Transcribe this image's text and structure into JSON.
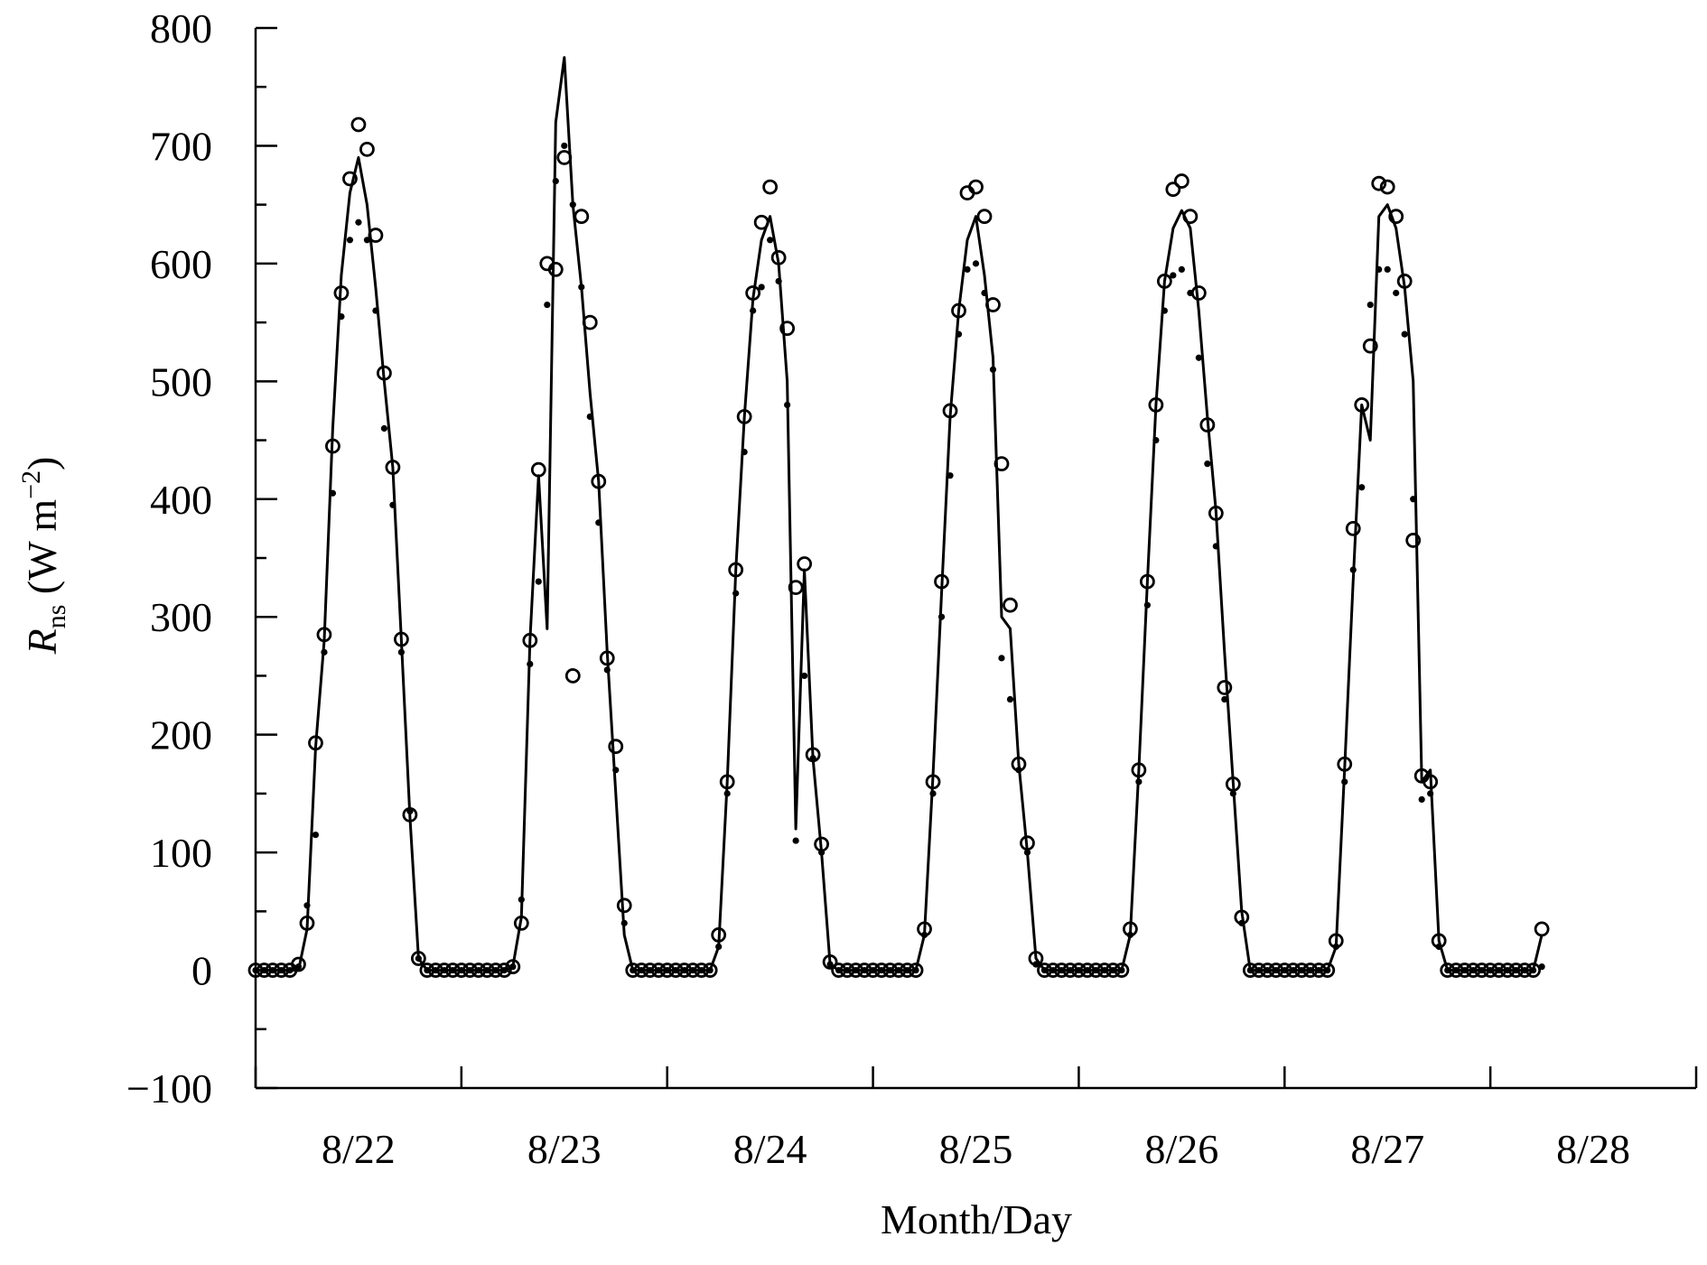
{
  "chart_data": {
    "type": "line",
    "xlabel": "Month/Day",
    "ylabel_parts": [
      "R",
      "ns",
      " (W m",
      "−2",
      ")"
    ],
    "x": [
      0,
      1,
      2,
      3,
      4,
      5,
      6,
      7,
      8,
      9,
      10,
      11,
      12,
      13,
      14,
      15,
      16,
      17,
      18,
      19,
      20,
      21,
      22,
      23,
      24,
      25,
      26,
      27,
      28,
      29,
      30,
      31,
      32,
      33,
      34,
      35,
      36,
      37,
      38,
      39,
      40,
      41,
      42,
      43,
      44,
      45,
      46,
      47,
      48,
      49,
      50,
      51,
      52,
      53,
      54,
      55,
      56,
      57,
      58,
      59,
      60,
      61,
      62,
      63,
      64,
      65,
      66,
      67,
      68,
      69,
      70,
      71,
      72,
      73,
      74,
      75,
      76,
      77,
      78,
      79,
      80,
      81,
      82,
      83,
      84,
      85,
      86,
      87,
      88,
      89,
      90,
      91,
      92,
      93,
      94,
      95,
      96,
      97,
      98,
      99,
      100,
      101,
      102,
      103,
      104,
      105,
      106,
      107,
      108,
      109,
      110,
      111,
      112,
      113,
      114,
      115,
      116,
      117,
      118,
      119,
      120,
      121,
      122,
      123,
      124,
      125,
      126,
      127,
      128,
      129,
      130,
      131,
      132,
      133,
      134,
      135,
      136,
      137,
      138,
      139,
      140,
      141,
      142,
      143,
      144,
      145,
      146,
      147,
      148,
      149,
      150
    ],
    "xlim": [
      0,
      168
    ],
    "xtick_marks": [
      0,
      24,
      48,
      72,
      96,
      120,
      144,
      168
    ],
    "xticks": [
      {
        "value": 12,
        "label": "8/22"
      },
      {
        "value": 36,
        "label": "8/23"
      },
      {
        "value": 60,
        "label": "8/24"
      },
      {
        "value": 84,
        "label": "8/25"
      },
      {
        "value": 108,
        "label": "8/26"
      },
      {
        "value": 132,
        "label": "8/27"
      },
      {
        "value": 156,
        "label": "8/28"
      }
    ],
    "ylim": [
      -100,
      800
    ],
    "yticks": [
      {
        "value": -100,
        "label": "−100"
      },
      0,
      100,
      200,
      300,
      400,
      500,
      600,
      700,
      800
    ],
    "yminor": [
      -50,
      50,
      150,
      250,
      350,
      450,
      550,
      650,
      750
    ],
    "series": [
      {
        "mark": "line",
        "color": "#000000",
        "values": [
          0,
          0,
          0,
          0,
          0,
          0,
          35,
          190,
          280,
          460,
          590,
          660,
          690,
          650,
          580,
          500,
          427,
          280,
          130,
          10,
          0,
          0,
          0,
          0,
          0,
          0,
          0,
          0,
          0,
          0,
          3,
          45,
          280,
          420,
          290,
          720,
          775,
          650,
          580,
          490,
          415,
          270,
          150,
          30,
          0,
          0,
          0,
          0,
          0,
          0,
          0,
          0,
          0,
          0,
          20,
          160,
          340,
          470,
          570,
          620,
          640,
          600,
          500,
          120,
          340,
          180,
          100,
          5,
          0,
          0,
          0,
          0,
          0,
          0,
          0,
          0,
          0,
          0,
          30,
          165,
          320,
          470,
          560,
          620,
          640,
          590,
          520,
          300,
          290,
          175,
          100,
          10,
          0,
          0,
          0,
          0,
          0,
          0,
          0,
          0,
          0,
          0,
          30,
          170,
          330,
          480,
          585,
          630,
          645,
          630,
          560,
          470,
          390,
          270,
          160,
          50,
          0,
          0,
          0,
          0,
          0,
          0,
          0,
          0,
          0,
          0,
          20,
          170,
          330,
          480,
          450,
          640,
          650,
          630,
          580,
          500,
          160,
          170,
          25,
          0,
          0,
          0,
          0,
          0,
          0,
          0,
          0,
          0,
          0,
          0,
          30
        ]
      },
      {
        "mark": "open-circle",
        "color": "#000000",
        "values": [
          0,
          0,
          0,
          0,
          0,
          5,
          40,
          193,
          285,
          445,
          575,
          672,
          718,
          697,
          624,
          507,
          427,
          281,
          132,
          10,
          0,
          0,
          0,
          0,
          0,
          0,
          0,
          0,
          0,
          0,
          3,
          40,
          280,
          425,
          600,
          595,
          690,
          250,
          640,
          550,
          415,
          265,
          190,
          55,
          0,
          0,
          0,
          0,
          0,
          0,
          0,
          0,
          0,
          0,
          30,
          160,
          340,
          470,
          575,
          635,
          665,
          605,
          545,
          325,
          345,
          183,
          107,
          7,
          0,
          0,
          0,
          0,
          0,
          0,
          0,
          0,
          0,
          0,
          35,
          160,
          330,
          475,
          560,
          660,
          665,
          640,
          565,
          430,
          310,
          175,
          108,
          10,
          0,
          0,
          0,
          0,
          0,
          0,
          0,
          0,
          0,
          0,
          35,
          170,
          330,
          480,
          585,
          663,
          670,
          640,
          575,
          463,
          388,
          240,
          158,
          45,
          0,
          0,
          0,
          0,
          0,
          0,
          0,
          0,
          0,
          0,
          25,
          175,
          375,
          480,
          530,
          668,
          665,
          640,
          585,
          365,
          165,
          160,
          25,
          0,
          0,
          0,
          0,
          0,
          0,
          0,
          0,
          0,
          0,
          0,
          35
        ]
      },
      {
        "mark": "dot",
        "color": "#000000",
        "values": [
          0,
          0,
          0,
          0,
          0,
          3,
          55,
          115,
          270,
          405,
          555,
          620,
          635,
          620,
          560,
          460,
          395,
          270,
          135,
          10,
          0,
          0,
          0,
          0,
          0,
          0,
          0,
          0,
          0,
          0,
          3,
          60,
          260,
          330,
          565,
          670,
          700,
          650,
          580,
          470,
          380,
          255,
          170,
          40,
          0,
          0,
          0,
          0,
          0,
          0,
          0,
          0,
          0,
          0,
          20,
          150,
          320,
          440,
          560,
          580,
          620,
          585,
          480,
          110,
          250,
          180,
          100,
          5,
          0,
          0,
          0,
          0,
          0,
          0,
          0,
          0,
          0,
          0,
          30,
          150,
          300,
          420,
          540,
          595,
          600,
          575,
          510,
          265,
          230,
          170,
          100,
          5,
          0,
          0,
          0,
          0,
          0,
          0,
          0,
          0,
          0,
          0,
          30,
          160,
          310,
          450,
          560,
          590,
          595,
          575,
          520,
          430,
          360,
          230,
          150,
          40,
          0,
          0,
          0,
          0,
          0,
          0,
          0,
          0,
          0,
          0,
          20,
          160,
          340,
          410,
          565,
          595,
          595,
          575,
          540,
          400,
          145,
          150,
          20,
          0,
          0,
          0,
          0,
          0,
          0,
          0,
          0,
          0,
          0,
          0,
          3
        ]
      }
    ]
  }
}
